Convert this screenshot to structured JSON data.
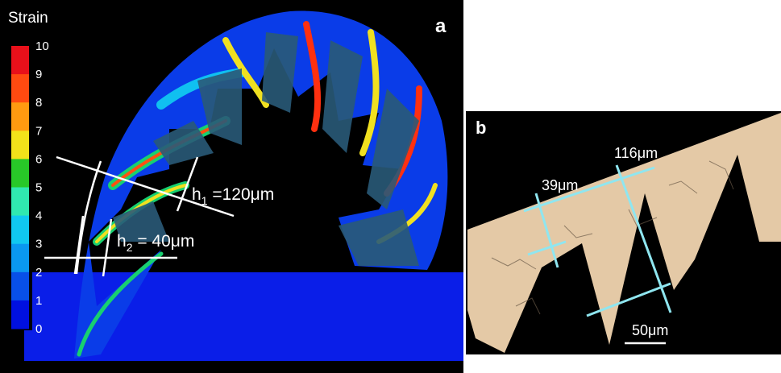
{
  "panel_a": {
    "letter": "a",
    "colorbar": {
      "title": "Strain",
      "labels": [
        "10",
        "9",
        "8",
        "7",
        "6",
        "5",
        "4",
        "3",
        "2",
        "1",
        "0"
      ],
      "colors": [
        "#e8101a",
        "#ff4a10",
        "#ff9a10",
        "#f2e21a",
        "#28c828",
        "#30e8b0",
        "#10c8f0",
        "#0a98f0",
        "#0850e8",
        "#0010e0"
      ]
    },
    "h1": {
      "symbol": "h",
      "subscript": "1",
      "text": " =120μm"
    },
    "h2": {
      "symbol": "h",
      "subscript": "2",
      "text": " = 40μm"
    }
  },
  "panel_b": {
    "letter": "b",
    "dim_116": "116μm",
    "dim_39": "39μm",
    "scale_bar": "50μm"
  }
}
